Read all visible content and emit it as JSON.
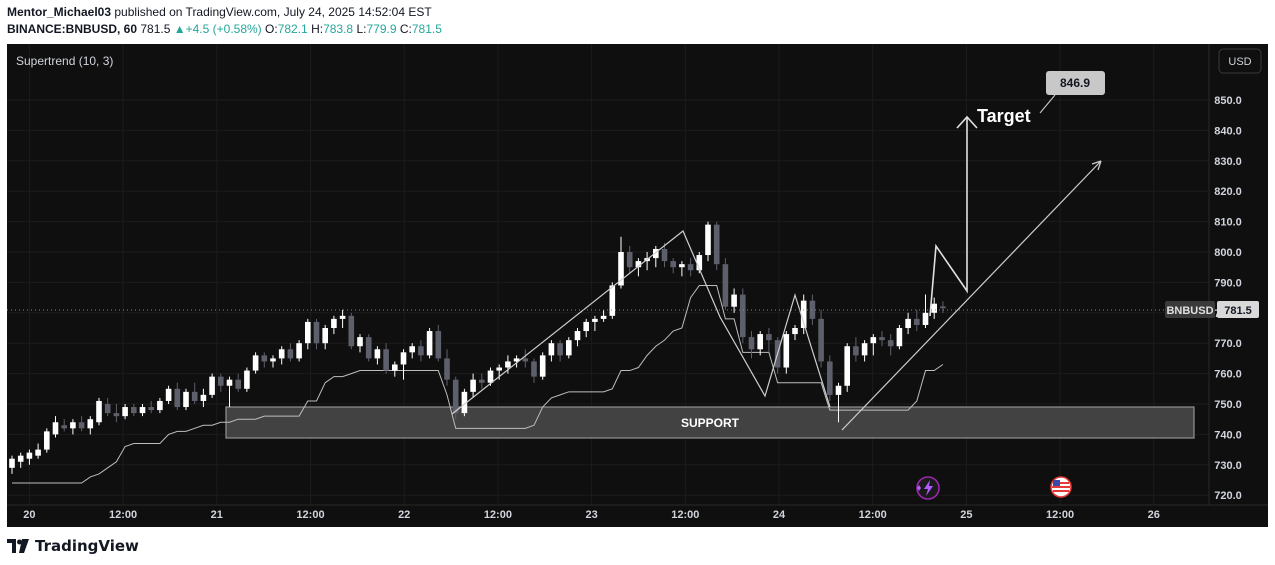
{
  "header": {
    "author": "Mentor_Michael03",
    "published_text": " published on TradingView.com, July 24, 2025 14:52:04 EST",
    "symbol": "BINANCE:BNBUSD, 60",
    "last": "781.5",
    "change": "+4.5 (+0.58%)",
    "o_label": "O:",
    "o_value": "782.1",
    "h_label": "H:",
    "h_value": "783.8",
    "l_label": "L:",
    "l_value": "779.9",
    "c_label": "C:",
    "c_value": "781.5"
  },
  "indicator": {
    "label": "Supertrend (10, 3)"
  },
  "currency_button": "USD",
  "price_tag": {
    "symbol": "BNBUSD",
    "value": "781.5"
  },
  "annotations": {
    "target_label": "Target",
    "target_value": "846.9",
    "support_label": "SUPPORT"
  },
  "footer": {
    "brand": "TradingView"
  },
  "colors": {
    "background": "#0f0f0f",
    "bull": "#ffffff",
    "bear": "#5d606b",
    "support_fill": "#4a4a4a",
    "callout": "#c8c8c8",
    "event_purple": "#9c27b0",
    "event_flag": "#e53935"
  },
  "chart_data": {
    "type": "candlestick",
    "title": "",
    "ylabel": "",
    "ylim": [
      716,
      860
    ],
    "y_ticks": [
      720,
      730,
      740,
      750,
      760,
      770,
      780,
      790,
      800,
      810,
      820,
      830,
      840,
      850
    ],
    "x_ticks": [
      "20",
      "12:00",
      "21",
      "12:00",
      "22",
      "12:00",
      "23",
      "12:00",
      "24",
      "12:00",
      "25",
      "12:00",
      "26"
    ],
    "candles": [
      {
        "i": 0,
        "o": 729,
        "h": 733,
        "l": 727,
        "c": 732
      },
      {
        "i": 1,
        "o": 731,
        "h": 734,
        "l": 729,
        "c": 733
      },
      {
        "i": 2,
        "o": 732,
        "h": 735,
        "l": 730,
        "c": 734
      },
      {
        "i": 3,
        "o": 733,
        "h": 737,
        "l": 732,
        "c": 735
      },
      {
        "i": 4,
        "o": 735,
        "h": 742,
        "l": 734,
        "c": 741
      },
      {
        "i": 5,
        "o": 740,
        "h": 746,
        "l": 739,
        "c": 744
      },
      {
        "i": 6,
        "o": 743,
        "h": 745,
        "l": 741,
        "c": 742
      },
      {
        "i": 7,
        "o": 742,
        "h": 745,
        "l": 740,
        "c": 744
      },
      {
        "i": 8,
        "o": 744,
        "h": 746,
        "l": 741,
        "c": 742
      },
      {
        "i": 9,
        "o": 742,
        "h": 746,
        "l": 740,
        "c": 745
      },
      {
        "i": 10,
        "o": 744,
        "h": 752,
        "l": 743,
        "c": 751
      },
      {
        "i": 11,
        "o": 750,
        "h": 752,
        "l": 746,
        "c": 747
      },
      {
        "i": 12,
        "o": 747,
        "h": 750,
        "l": 744,
        "c": 746
      },
      {
        "i": 13,
        "o": 746,
        "h": 750,
        "l": 745,
        "c": 749
      },
      {
        "i": 14,
        "o": 749,
        "h": 750,
        "l": 746,
        "c": 747
      },
      {
        "i": 15,
        "o": 747,
        "h": 750,
        "l": 746,
        "c": 749
      },
      {
        "i": 16,
        "o": 749,
        "h": 751,
        "l": 747,
        "c": 748
      },
      {
        "i": 17,
        "o": 748,
        "h": 752,
        "l": 747,
        "c": 751
      },
      {
        "i": 18,
        "o": 751,
        "h": 756,
        "l": 750,
        "c": 755
      },
      {
        "i": 19,
        "o": 755,
        "h": 757,
        "l": 748,
        "c": 749
      },
      {
        "i": 20,
        "o": 749,
        "h": 755,
        "l": 748,
        "c": 754
      },
      {
        "i": 21,
        "o": 754,
        "h": 757,
        "l": 750,
        "c": 751
      },
      {
        "i": 22,
        "o": 751,
        "h": 755,
        "l": 749,
        "c": 753
      },
      {
        "i": 23,
        "o": 753,
        "h": 760,
        "l": 752,
        "c": 759
      },
      {
        "i": 24,
        "o": 759,
        "h": 760,
        "l": 754,
        "c": 756
      },
      {
        "i": 25,
        "o": 756,
        "h": 759,
        "l": 749,
        "c": 758
      },
      {
        "i": 26,
        "o": 758,
        "h": 760,
        "l": 754,
        "c": 755
      },
      {
        "i": 27,
        "o": 755,
        "h": 762,
        "l": 754,
        "c": 761
      },
      {
        "i": 28,
        "o": 761,
        "h": 767,
        "l": 760,
        "c": 766
      },
      {
        "i": 29,
        "o": 766,
        "h": 767,
        "l": 762,
        "c": 764
      },
      {
        "i": 30,
        "o": 764,
        "h": 766,
        "l": 762,
        "c": 765
      },
      {
        "i": 31,
        "o": 765,
        "h": 769,
        "l": 763,
        "c": 768
      },
      {
        "i": 32,
        "o": 768,
        "h": 770,
        "l": 764,
        "c": 765
      },
      {
        "i": 33,
        "o": 765,
        "h": 771,
        "l": 764,
        "c": 770
      },
      {
        "i": 34,
        "o": 770,
        "h": 778,
        "l": 768,
        "c": 777
      },
      {
        "i": 35,
        "o": 777,
        "h": 778,
        "l": 768,
        "c": 770
      },
      {
        "i": 36,
        "o": 770,
        "h": 776,
        "l": 768,
        "c": 775
      },
      {
        "i": 37,
        "o": 775,
        "h": 779,
        "l": 773,
        "c": 778
      },
      {
        "i": 38,
        "o": 778,
        "h": 781,
        "l": 775,
        "c": 779
      },
      {
        "i": 39,
        "o": 779,
        "h": 780,
        "l": 768,
        "c": 769
      },
      {
        "i": 40,
        "o": 769,
        "h": 773,
        "l": 767,
        "c": 772
      },
      {
        "i": 41,
        "o": 772,
        "h": 773,
        "l": 764,
        "c": 765
      },
      {
        "i": 42,
        "o": 765,
        "h": 769,
        "l": 763,
        "c": 768
      },
      {
        "i": 43,
        "o": 768,
        "h": 770,
        "l": 760,
        "c": 761
      },
      {
        "i": 44,
        "o": 761,
        "h": 764,
        "l": 759,
        "c": 763
      },
      {
        "i": 45,
        "o": 763,
        "h": 768,
        "l": 758,
        "c": 767
      },
      {
        "i": 46,
        "o": 767,
        "h": 770,
        "l": 765,
        "c": 769
      },
      {
        "i": 47,
        "o": 769,
        "h": 771,
        "l": 764,
        "c": 766
      },
      {
        "i": 48,
        "o": 766,
        "h": 775,
        "l": 765,
        "c": 774
      },
      {
        "i": 49,
        "o": 774,
        "h": 776,
        "l": 764,
        "c": 765
      },
      {
        "i": 50,
        "o": 765,
        "h": 768,
        "l": 756,
        "c": 758
      },
      {
        "i": 51,
        "o": 758,
        "h": 759,
        "l": 745,
        "c": 747
      },
      {
        "i": 52,
        "o": 747,
        "h": 755,
        "l": 746,
        "c": 754
      },
      {
        "i": 53,
        "o": 754,
        "h": 760,
        "l": 752,
        "c": 758
      },
      {
        "i": 54,
        "o": 758,
        "h": 760,
        "l": 755,
        "c": 757
      },
      {
        "i": 55,
        "o": 757,
        "h": 762,
        "l": 756,
        "c": 761
      },
      {
        "i": 56,
        "o": 761,
        "h": 763,
        "l": 758,
        "c": 762
      },
      {
        "i": 57,
        "o": 762,
        "h": 766,
        "l": 760,
        "c": 764
      },
      {
        "i": 58,
        "o": 764,
        "h": 766,
        "l": 762,
        "c": 765
      },
      {
        "i": 59,
        "o": 765,
        "h": 768,
        "l": 762,
        "c": 764
      },
      {
        "i": 60,
        "o": 764,
        "h": 765,
        "l": 757,
        "c": 759
      },
      {
        "i": 61,
        "o": 759,
        "h": 767,
        "l": 758,
        "c": 766
      },
      {
        "i": 62,
        "o": 766,
        "h": 771,
        "l": 764,
        "c": 770
      },
      {
        "i": 63,
        "o": 770,
        "h": 771,
        "l": 764,
        "c": 766
      },
      {
        "i": 64,
        "o": 766,
        "h": 772,
        "l": 765,
        "c": 771
      },
      {
        "i": 65,
        "o": 771,
        "h": 775,
        "l": 769,
        "c": 774
      },
      {
        "i": 66,
        "o": 774,
        "h": 778,
        "l": 772,
        "c": 777
      },
      {
        "i": 67,
        "o": 777,
        "h": 779,
        "l": 774,
        "c": 778
      },
      {
        "i": 68,
        "o": 778,
        "h": 781,
        "l": 777,
        "c": 779
      },
      {
        "i": 69,
        "o": 779,
        "h": 790,
        "l": 778,
        "c": 789
      },
      {
        "i": 70,
        "o": 789,
        "h": 805,
        "l": 788,
        "c": 800
      },
      {
        "i": 71,
        "o": 800,
        "h": 802,
        "l": 793,
        "c": 795
      },
      {
        "i": 72,
        "o": 795,
        "h": 798,
        "l": 792,
        "c": 797
      },
      {
        "i": 73,
        "o": 797,
        "h": 800,
        "l": 794,
        "c": 798
      },
      {
        "i": 74,
        "o": 798,
        "h": 802,
        "l": 795,
        "c": 801
      },
      {
        "i": 75,
        "o": 801,
        "h": 803,
        "l": 795,
        "c": 797
      },
      {
        "i": 76,
        "o": 797,
        "h": 798,
        "l": 793,
        "c": 795
      },
      {
        "i": 77,
        "o": 795,
        "h": 797,
        "l": 792,
        "c": 796
      },
      {
        "i": 78,
        "o": 796,
        "h": 798,
        "l": 792,
        "c": 794
      },
      {
        "i": 79,
        "o": 794,
        "h": 800,
        "l": 793,
        "c": 799
      },
      {
        "i": 80,
        "o": 799,
        "h": 810,
        "l": 797,
        "c": 809
      },
      {
        "i": 81,
        "o": 809,
        "h": 810,
        "l": 794,
        "c": 796
      },
      {
        "i": 82,
        "o": 796,
        "h": 798,
        "l": 781,
        "c": 782
      },
      {
        "i": 83,
        "o": 782,
        "h": 788,
        "l": 780,
        "c": 786
      },
      {
        "i": 84,
        "o": 786,
        "h": 788,
        "l": 770,
        "c": 772
      },
      {
        "i": 85,
        "o": 772,
        "h": 774,
        "l": 765,
        "c": 768
      },
      {
        "i": 86,
        "o": 768,
        "h": 774,
        "l": 766,
        "c": 773
      },
      {
        "i": 87,
        "o": 773,
        "h": 775,
        "l": 767,
        "c": 771
      },
      {
        "i": 88,
        "o": 771,
        "h": 772,
        "l": 760,
        "c": 762
      },
      {
        "i": 89,
        "o": 762,
        "h": 774,
        "l": 760,
        "c": 773
      },
      {
        "i": 90,
        "o": 773,
        "h": 776,
        "l": 771,
        "c": 775
      },
      {
        "i": 91,
        "o": 775,
        "h": 786,
        "l": 773,
        "c": 784
      },
      {
        "i": 92,
        "o": 784,
        "h": 786,
        "l": 776,
        "c": 778
      },
      {
        "i": 93,
        "o": 778,
        "h": 781,
        "l": 762,
        "c": 764
      },
      {
        "i": 94,
        "o": 764,
        "h": 766,
        "l": 751,
        "c": 753
      },
      {
        "i": 95,
        "o": 753,
        "h": 757,
        "l": 744,
        "c": 756
      },
      {
        "i": 96,
        "o": 756,
        "h": 770,
        "l": 754,
        "c": 769
      },
      {
        "i": 97,
        "o": 769,
        "h": 772,
        "l": 764,
        "c": 766
      },
      {
        "i": 98,
        "o": 766,
        "h": 771,
        "l": 764,
        "c": 770
      },
      {
        "i": 99,
        "o": 770,
        "h": 773,
        "l": 766,
        "c": 772
      },
      {
        "i": 100,
        "o": 772,
        "h": 774,
        "l": 769,
        "c": 771
      },
      {
        "i": 101,
        "o": 771,
        "h": 773,
        "l": 766,
        "c": 769
      },
      {
        "i": 102,
        "o": 769,
        "h": 776,
        "l": 768,
        "c": 775
      },
      {
        "i": 103,
        "o": 775,
        "h": 780,
        "l": 773,
        "c": 778
      },
      {
        "i": 104,
        "o": 778,
        "h": 781,
        "l": 774,
        "c": 776
      },
      {
        "i": 105,
        "o": 776,
        "h": 786,
        "l": 775,
        "c": 780
      },
      {
        "i": 106,
        "o": 780,
        "h": 785,
        "l": 778,
        "c": 783
      },
      {
        "i": 107,
        "o": 782.1,
        "h": 783.8,
        "l": 779.9,
        "c": 781.5
      }
    ],
    "support_zone": {
      "from": 739,
      "to": 749,
      "label": "SUPPORT"
    },
    "target": {
      "value": 846.9,
      "label": "Target"
    },
    "current_price": 781.5
  }
}
